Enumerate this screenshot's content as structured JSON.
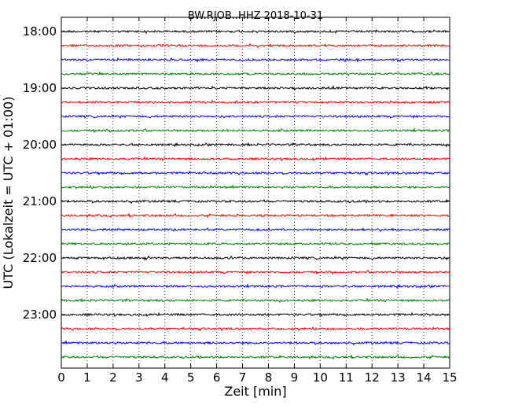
{
  "chart_data": {
    "type": "line",
    "title": "BW.RJOB..HHZ 2018-10-31",
    "xlabel": "Zeit  [min]",
    "ylabel": "UTC (Lokalzeit = UTC + 01:00)",
    "xlim": [
      0,
      15
    ],
    "x_ticks": [
      "0",
      "1",
      "2",
      "3",
      "4",
      "5",
      "6",
      "7",
      "8",
      "9",
      "10",
      "11",
      "12",
      "13",
      "14",
      "15"
    ],
    "y_ticks": [
      "18:00",
      "19:00",
      "20:00",
      "21:00",
      "22:00",
      "23:00"
    ],
    "grid": "vertical dotted",
    "trace_colors": [
      "#000000",
      "#ff0000",
      "#0000ff",
      "#008000"
    ],
    "traces": [
      {
        "start": "18:00",
        "color": "#000000"
      },
      {
        "start": "18:15",
        "color": "#ff0000"
      },
      {
        "start": "18:30",
        "color": "#0000ff"
      },
      {
        "start": "18:45",
        "color": "#008000"
      },
      {
        "start": "19:00",
        "color": "#000000"
      },
      {
        "start": "19:15",
        "color": "#ff0000"
      },
      {
        "start": "19:30",
        "color": "#0000ff"
      },
      {
        "start": "19:45",
        "color": "#008000"
      },
      {
        "start": "20:00",
        "color": "#000000"
      },
      {
        "start": "20:15",
        "color": "#ff0000"
      },
      {
        "start": "20:30",
        "color": "#0000ff"
      },
      {
        "start": "20:45",
        "color": "#008000"
      },
      {
        "start": "21:00",
        "color": "#000000"
      },
      {
        "start": "21:15",
        "color": "#ff0000"
      },
      {
        "start": "21:30",
        "color": "#0000ff"
      },
      {
        "start": "21:45",
        "color": "#008000"
      },
      {
        "start": "22:00",
        "color": "#000000"
      },
      {
        "start": "22:15",
        "color": "#ff0000"
      },
      {
        "start": "22:30",
        "color": "#0000ff"
      },
      {
        "start": "22:45",
        "color": "#008000"
      },
      {
        "start": "23:00",
        "color": "#000000"
      },
      {
        "start": "23:15",
        "color": "#ff0000"
      },
      {
        "start": "23:30",
        "color": "#0000ff"
      },
      {
        "start": "23:45",
        "color": "#008000"
      }
    ]
  }
}
